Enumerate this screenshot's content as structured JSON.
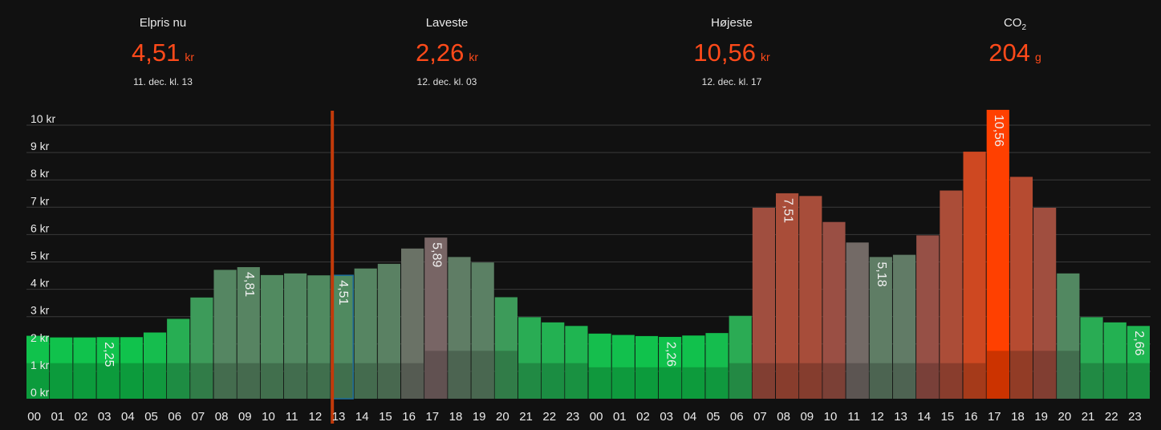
{
  "stats": [
    {
      "title": "Elpris nu",
      "value": "4,51",
      "unit": "kr",
      "sub": "11. dec. kl. 13"
    },
    {
      "title": "Laveste",
      "value": "2,26",
      "unit": "kr",
      "sub": "12. dec. kl. 03"
    },
    {
      "title": "Højeste",
      "value": "10,56",
      "unit": "kr",
      "sub": "12. dec. kl. 17"
    },
    {
      "title_main": "CO",
      "title_sub": "2",
      "value": "204",
      "unit": "g",
      "sub": ""
    }
  ],
  "chart_data": {
    "type": "bar",
    "title": "",
    "xlabel": "",
    "ylabel": "",
    "ylim": [
      0,
      10.5
    ],
    "y_ticks": [
      "0 kr",
      "1 kr",
      "2 kr",
      "3 kr",
      "4 kr",
      "5 kr",
      "6 kr",
      "7 kr",
      "8 kr",
      "9 kr",
      "10 kr"
    ],
    "grid": true,
    "categories": [
      "00",
      "01",
      "02",
      "03",
      "04",
      "05",
      "06",
      "07",
      "08",
      "09",
      "10",
      "11",
      "12",
      "13",
      "14",
      "15",
      "16",
      "17",
      "18",
      "19",
      "20",
      "21",
      "22",
      "23",
      "00",
      "01",
      "02",
      "03",
      "04",
      "05",
      "06",
      "07",
      "08",
      "09",
      "10",
      "11",
      "12",
      "13",
      "14",
      "15",
      "16",
      "17",
      "18",
      "19",
      "20",
      "21",
      "22",
      "23"
    ],
    "values": [
      2.3,
      2.24,
      2.24,
      2.25,
      2.25,
      2.42,
      2.92,
      3.7,
      4.71,
      4.81,
      4.52,
      4.58,
      4.51,
      4.51,
      4.76,
      4.93,
      5.49,
      5.89,
      5.18,
      4.98,
      3.71,
      2.98,
      2.79,
      2.66,
      2.38,
      2.33,
      2.29,
      2.26,
      2.31,
      2.4,
      3.03,
      6.98,
      7.51,
      7.41,
      6.46,
      5.71,
      5.18,
      5.26,
      5.97,
      7.61,
      9.03,
      10.56,
      8.11,
      6.98,
      4.58,
      2.98,
      2.79,
      2.66
    ],
    "base_values": [
      1.3,
      1.3,
      1.3,
      1.3,
      1.3,
      1.3,
      1.3,
      1.3,
      1.3,
      1.3,
      1.3,
      1.3,
      1.3,
      1.3,
      1.3,
      1.3,
      1.3,
      1.75,
      1.75,
      1.75,
      1.75,
      1.3,
      1.3,
      1.3,
      1.15,
      1.15,
      1.15,
      1.15,
      1.15,
      1.15,
      1.3,
      1.3,
      1.3,
      1.3,
      1.3,
      1.3,
      1.3,
      1.3,
      1.3,
      1.3,
      1.3,
      1.75,
      1.75,
      1.75,
      1.75,
      1.3,
      1.3,
      1.3
    ],
    "value_labels": [
      {
        "index": 3,
        "text": "2,25"
      },
      {
        "index": 9,
        "text": "4,81"
      },
      {
        "index": 13,
        "text": "4,51"
      },
      {
        "index": 17,
        "text": "5,89"
      },
      {
        "index": 27,
        "text": "2,26"
      },
      {
        "index": 32,
        "text": "7,51"
      },
      {
        "index": 36,
        "text": "5,18"
      },
      {
        "index": 41,
        "text": "10,56"
      },
      {
        "index": 47,
        "text": "2,66"
      }
    ],
    "current_index": 13,
    "colors": {
      "cheap": "#10c24c",
      "mid": "#6f6f6a",
      "expensive": "#ff4000",
      "grid": "#3a3a3a",
      "now_line": "#c23a0a",
      "now_border": "#1f6f9c",
      "label": "#f0f0f0"
    }
  }
}
